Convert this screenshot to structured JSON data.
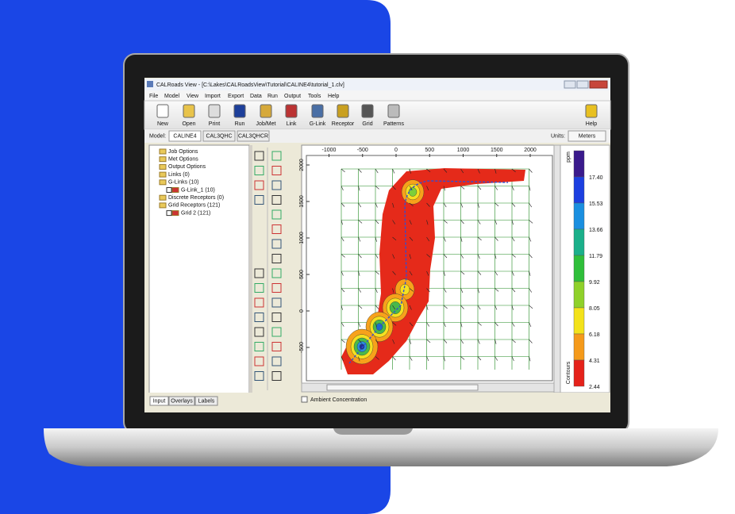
{
  "window": {
    "title": "CALRoads View - [C:\\Lakes\\CALRoadsView\\Tutorial\\CALINE4\\tutorial_1.clv]",
    "menu": [
      "File",
      "Model",
      "View",
      "Import",
      "Export",
      "Data",
      "Run",
      "Output",
      "Tools",
      "Help"
    ],
    "toolbar": [
      "New",
      "Open",
      "Print",
      "Run",
      "Job/Met",
      "Link",
      "G-Link",
      "Receptor",
      "Grid",
      "Patterns",
      "Help"
    ],
    "model_label": "Model:",
    "model_tabs": [
      "CALINE4",
      "CAL3QHC",
      "CAL3QHCR"
    ],
    "units_label": "Units:",
    "units": "Meters"
  },
  "tree": [
    {
      "label": "Job Options"
    },
    {
      "label": "Met Options"
    },
    {
      "label": "Output Options"
    },
    {
      "label": "Links (0)"
    },
    {
      "label": "G-Links (10)",
      "children": [
        "G-Link_1 (10)"
      ]
    },
    {
      "label": "Discrete Receptors (0)"
    },
    {
      "label": "Grid Receptors (121)",
      "children": [
        "Grid 2 (121)"
      ]
    }
  ],
  "panel_tabs": [
    "Input",
    "Overlays",
    "Labels"
  ],
  "plot": {
    "xticks": [
      -1000,
      -500,
      0,
      500,
      1000,
      1500,
      2000
    ],
    "yticks": [
      2000,
      1500,
      1000,
      500,
      0,
      -500
    ]
  },
  "legend": {
    "unit": "ppm",
    "levels": [
      "17.40",
      "15.53",
      "13.66",
      "11.79",
      "9.92",
      "8.05",
      "6.18",
      "4.31",
      "2.44"
    ],
    "caption": "Contours"
  },
  "status": {
    "checkbox_label": "Ambient Concentration"
  }
}
